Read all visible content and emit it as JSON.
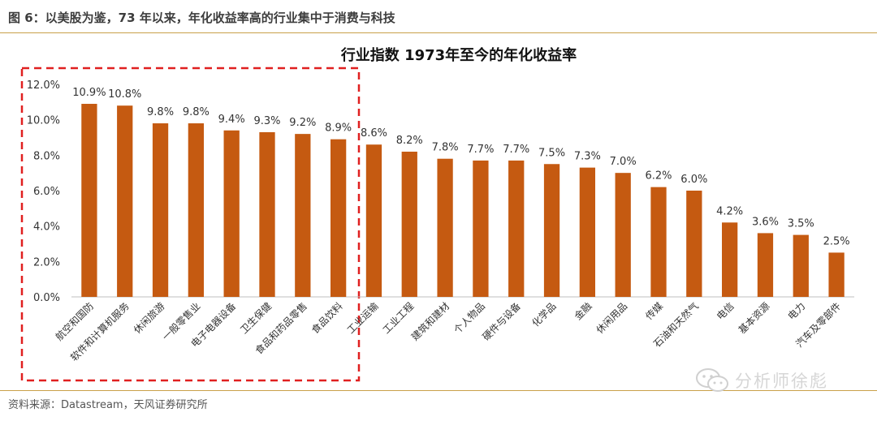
{
  "figure": {
    "caption": "图 6：以美股为鉴，73 年以来，年化收益率高的行业集中于消费与科技",
    "source": "资料来源：Datastream，天风证券研究所",
    "watermark": "分析师徐彪"
  },
  "colors": {
    "bar": "#C55A11",
    "highlight_box": "#E02020",
    "rule": "#C9A14A",
    "axis": "#BFBFBF"
  },
  "chart_data": {
    "type": "bar",
    "title": "行业指数 1973年至今的年化收益率",
    "xlabel": "",
    "ylabel": "",
    "ylim": [
      0,
      12
    ],
    "yticks": [
      "0.0%",
      "2.0%",
      "4.0%",
      "6.0%",
      "8.0%",
      "10.0%",
      "12.0%"
    ],
    "grid": false,
    "highlight": {
      "style": "dashed-box",
      "categories_from": 0,
      "categories_to": 7
    },
    "categories": [
      "航空和国防",
      "软件和计算机服务",
      "休闲旅游",
      "一般零售业",
      "电子电器设备",
      "卫生保健",
      "食品和药品零售",
      "食品饮料",
      "工业运输",
      "工业工程",
      "建筑和建材",
      "个人物品",
      "硬件与设备",
      "化学品",
      "金融",
      "休闲用品",
      "传媒",
      "石油和天然气",
      "电信",
      "基本资源",
      "电力",
      "汽车及零部件"
    ],
    "values": [
      10.9,
      10.8,
      9.8,
      9.8,
      9.4,
      9.3,
      9.2,
      8.9,
      8.6,
      8.2,
      7.8,
      7.7,
      7.7,
      7.5,
      7.3,
      7.0,
      6.2,
      6.0,
      4.2,
      3.6,
      3.5,
      2.5
    ],
    "data_labels": [
      "10.9%",
      "10.8%",
      "9.8%",
      "9.8%",
      "9.4%",
      "9.3%",
      "9.2%",
      "8.9%",
      "8.6%",
      "8.2%",
      "7.8%",
      "7.7%",
      "7.7%",
      "7.5%",
      "7.3%",
      "7.0%",
      "6.2%",
      "6.0%",
      "4.2%",
      "3.6%",
      "3.5%",
      "2.5%"
    ]
  }
}
